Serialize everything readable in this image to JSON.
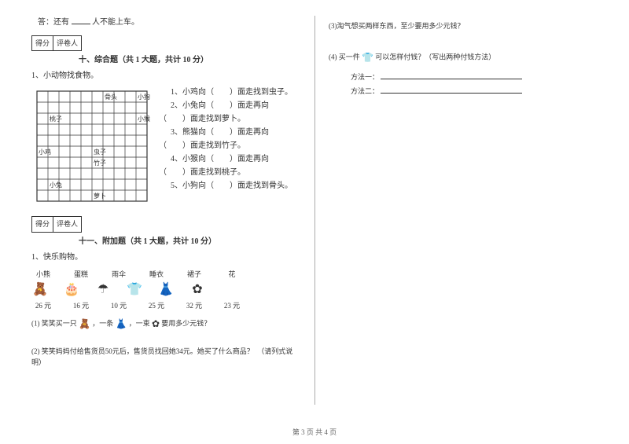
{
  "colLeft": {
    "answerLine": {
      "pre": "答：还有",
      "post": "人不能上车。"
    },
    "scoreBox": {
      "c1": "得分",
      "c2": "评卷人"
    },
    "section10": {
      "title": "十、综合题（共 1 大题，共计 10 分）",
      "q1": "1、小动物找食物。"
    },
    "grid": {
      "labels": {
        "top1": "骨头",
        "top2": "小狗",
        "peach": "桃子",
        "monkey": "小猴",
        "chick": "小鸡",
        "bug": "虫子",
        "bamboo": "竹子",
        "rabbit": "小兔",
        "carrot": "萝卜"
      },
      "questions": {
        "q1": "1、小鸡向（　　）面走找到虫子。",
        "q2": "2、小兔向（　　）面走再向（　　）面走找到萝卜。",
        "q3": "3、熊猫向（　　）面走再向（　　）面走找到竹子。",
        "q4": "4、小猴向（　　）面走再向（　　）面走找到桃子。",
        "q5": "5、小狗向（　　）面走找到骨头。"
      }
    },
    "section11": {
      "title": "十一、附加题（共 1 大题，共计 10 分）",
      "q1": "1、快乐购物。"
    },
    "shop": {
      "items": [
        {
          "name": "小熊",
          "icon": "🧸",
          "price": "26 元"
        },
        {
          "name": "蛋糕",
          "icon": "🎂",
          "price": "16 元"
        },
        {
          "name": "雨伞",
          "icon": "☂",
          "price": "10 元"
        },
        {
          "name": "睡衣",
          "icon": "👕",
          "price": "25 元"
        },
        {
          "name": "裙子",
          "icon": "👗",
          "price": "32 元"
        },
        {
          "name": "花",
          "icon": "✿",
          "price": "23 元"
        }
      ]
    },
    "sub1": {
      "pre": "(1) 笑笑买一只",
      "icon1": "🧸",
      "mid1": "，一条",
      "icon2": "👗",
      "mid2": "，一束",
      "icon3": "✿",
      "post": "要用多少元钱？"
    },
    "sub2": "(2) 笑笑妈妈付给售货员50元后，售货员找回她34元。她买了什么商品？　（请列式说明）"
  },
  "colRight": {
    "sub3": "(3)淘气想买两样东西，至少要用多少元钱？",
    "sub4": {
      "pre": "(4) 买一件",
      "icon": "👕",
      "post": "可以怎样付钱？（写出两种付钱方法）"
    },
    "method1": "方法一：",
    "method2": "方法二："
  },
  "footer": "第 3 页 共 4 页",
  "style": {
    "gridCells": 10,
    "cellSize": 14,
    "gridStroke": "#333",
    "labelFont": 8
  }
}
